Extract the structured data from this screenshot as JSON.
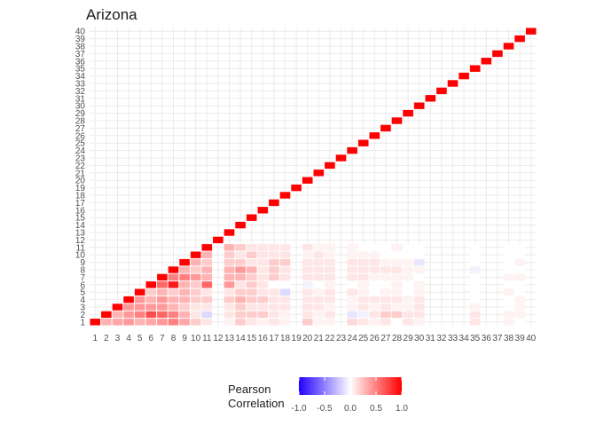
{
  "chart_data": {
    "type": "heatmap",
    "title": "Arizona",
    "xlabel": "",
    "ylabel": "",
    "x": [
      1,
      2,
      3,
      4,
      5,
      6,
      7,
      8,
      9,
      10,
      11,
      12,
      13,
      14,
      15,
      16,
      17,
      18,
      19,
      20,
      21,
      22,
      23,
      24,
      25,
      26,
      27,
      28,
      29,
      30,
      31,
      32,
      33,
      34,
      35,
      36,
      37,
      38,
      39,
      40
    ],
    "y": [
      1,
      2,
      3,
      4,
      5,
      6,
      7,
      8,
      9,
      10,
      11,
      12,
      13,
      14,
      15,
      16,
      17,
      18,
      19,
      20,
      21,
      22,
      23,
      24,
      25,
      26,
      27,
      28,
      29,
      30,
      31,
      32,
      33,
      34,
      35,
      36,
      37,
      38,
      39,
      40
    ],
    "x_tick_labels": [
      "1",
      "2",
      "3",
      "4",
      "5",
      "6",
      "7",
      "8",
      "9",
      "10",
      "11",
      "12",
      "13",
      "14",
      "15",
      "16",
      "17",
      "18",
      "19",
      "20",
      "21",
      "22",
      "23",
      "24",
      "25",
      "26",
      "27",
      "28",
      "29",
      "30",
      "31",
      "32",
      "33",
      "34",
      "35",
      "36",
      "37",
      "38",
      "39",
      "40"
    ],
    "y_tick_labels": [
      "1",
      "2",
      "3",
      "4",
      "5",
      "6",
      "7",
      "8",
      "9",
      "10",
      "11",
      "12",
      "13",
      "14",
      "15",
      "16",
      "17",
      "18",
      "19",
      "20",
      "21",
      "22",
      "23",
      "24",
      "25",
      "26",
      "27",
      "28",
      "29",
      "30",
      "31",
      "32",
      "33",
      "34",
      "35",
      "36",
      "37",
      "38",
      "39",
      "40"
    ],
    "triangle": "upper",
    "diagonal_value": 1.0,
    "value_range": [
      -1,
      1
    ],
    "grid": true,
    "missing_indices": [
      12,
      19,
      23,
      31,
      32,
      33,
      34,
      36,
      37,
      40
    ],
    "correlations": [
      [
        0.15,
        0.3,
        0.35,
        0.4,
        0.3,
        0.35,
        0.4,
        0.5,
        0.35,
        0.2,
        0.1,
        0.05,
        0.2,
        0.1,
        0.05,
        0.1,
        0.05,
        0.2,
        0.05,
        0.05,
        0.15,
        0.1,
        0.05,
        0.1,
        0.0,
        0.1,
        0.05,
        0.1,
        0.05,
        0.0,
        0.0,
        0.05,
        0.0,
        0.0,
        0.0,
        0.0,
        0.0,
        0.0
      ],
      [
        0.3,
        0.4,
        0.3,
        0.4,
        0.5,
        0.7,
        0.6,
        0.5,
        0.3,
        0.1,
        -0.15,
        0.1,
        0.2,
        0.2,
        0.2,
        0.1,
        0.05,
        0.1,
        0.05,
        0.1,
        -0.1,
        -0.05,
        0.1,
        0.2,
        0.2,
        0.1,
        0.1,
        0.1,
        0.05,
        0.05,
        0.0,
        0.0,
        0.05,
        0.0,
        0.0,
        0.0,
        0.0,
        0.0
      ],
      [
        0.25,
        0.3,
        0.2,
        0.4,
        0.4,
        0.4,
        0.4,
        0.3,
        0.2,
        0.1,
        0.1,
        0.1,
        0.2,
        0.1,
        0.1,
        0.1,
        0.1,
        0.1,
        0.1,
        0.05,
        0.05,
        0.1,
        0.05,
        0.1,
        0.05,
        0.05,
        0.1,
        0.05,
        0.0,
        0.05,
        0.0,
        0.0,
        0.0,
        -0.05,
        0.0,
        0.0,
        0.0,
        0.0
      ],
      [
        0.3,
        0.3,
        0.4,
        0.3,
        0.4,
        0.3,
        0.4,
        0.3,
        0.3,
        0.2,
        0.2,
        0.2,
        0.3,
        0.2,
        0.2,
        0.1,
        0.1,
        0.1,
        0.1,
        0.1,
        0.05,
        0.1,
        0.1,
        0.1,
        0.1,
        0.05,
        0.1,
        0.0,
        0.0,
        0.05,
        0.0,
        0.0,
        -0.1,
        0.0,
        0.0,
        0.0,
        0.0,
        0.0
      ],
      [
        0.3,
        0.2,
        0.3,
        0.3,
        0.3,
        0.2,
        0.3,
        0.2,
        0.3,
        0.2,
        0.1,
        0.1,
        0.2,
        0.2,
        0.1,
        0.1,
        -0.15,
        0.1,
        0.05,
        0.1,
        0.1,
        0.05,
        0.0,
        0.05,
        0.05,
        0.0,
        0.05,
        0.0,
        0.05,
        0.0,
        -0.05,
        0.0,
        0.0,
        0.0,
        0.0,
        0.0,
        0.0,
        0.0
      ],
      [
        0.2,
        0.2,
        0.2,
        0.2,
        0.2,
        0.9,
        0.6,
        0.9,
        0.3,
        0.2,
        0.6,
        0.4,
        0.1,
        0.2,
        0.1,
        0.0,
        0.0,
        -0.05,
        0.0,
        0.05,
        0.0,
        0.05,
        0.0,
        0.0,
        0.05,
        0.0,
        0.05,
        0.0,
        0.0,
        0.0,
        0.0,
        0.0,
        0.05,
        0.0,
        0.0,
        0.05,
        0.0,
        0.0
      ],
      [
        0.3,
        0.2,
        0.3,
        0.4,
        0.5,
        0.4,
        0.5,
        0.5,
        0.5,
        0.4,
        0.3,
        0.3,
        0.3,
        0.2,
        0.1,
        0.2,
        0.1,
        0.1,
        0.1,
        0.1,
        0.1,
        0.1,
        0.05,
        0.05,
        0.05,
        0.05,
        0.0,
        0.0,
        0.05,
        0.05,
        0.0,
        0.0,
        0.0,
        -0.05,
        0.0,
        0.0,
        0.0,
        0.0
      ],
      [
        0.35,
        0.3,
        0.3,
        0.3,
        0.4,
        0.4,
        0.4,
        0.5,
        0.3,
        0.2,
        0.3,
        0.3,
        0.4,
        0.3,
        0.1,
        0.2,
        0.1,
        0.1,
        0.1,
        0.1,
        0.1,
        0.1,
        0.1,
        0.1,
        0.1,
        0.05,
        0.05,
        -0.05,
        0.0,
        0.0,
        0.0,
        0.0,
        0.0,
        -0.1,
        0.0,
        0.0,
        0.0,
        0.0
      ],
      [
        0.2,
        0.2,
        0.2,
        0.1,
        0.3,
        0.1,
        0.2,
        0.2,
        0.2,
        0.3,
        0.2,
        0.2,
        0.2,
        0.1,
        0.1,
        0.2,
        0.2,
        0.1,
        0.1,
        0.1,
        0.1,
        0.1,
        0.1,
        0.05,
        0.05,
        0.05,
        -0.1,
        0.0,
        0.0,
        0.05,
        0.0,
        0.0,
        0.0,
        0.0,
        0.0,
        0.0,
        0.0,
        0.0
      ],
      [
        0.15,
        0.3,
        0.2,
        0.3,
        0.2,
        0.3,
        0.2,
        0.4,
        0.3,
        0.2,
        0.3,
        0.2,
        0.1,
        0.2,
        0.1,
        0.1,
        0.1,
        0.05,
        0.1,
        0.05,
        0.05,
        0.05,
        0.05,
        0.0,
        0.0,
        0.0,
        0.0,
        0.0,
        0.0,
        0.0,
        0.0,
        0.05,
        0.0,
        0.0,
        -0.05,
        0.0,
        0.0,
        0.0
      ],
      [
        0.1,
        0.1,
        0.2,
        0.2,
        0.2,
        0.2,
        0.3,
        0.2,
        0.3,
        0.2,
        0.2,
        0.3,
        0.2,
        0.1,
        0.1,
        0.1,
        0.1,
        0.1,
        0.05,
        0.05,
        0.05,
        0.0,
        0.0,
        0.0,
        0.05,
        0.0,
        0.0,
        0.0,
        0.0,
        0.0,
        0.0,
        0.0,
        0.0,
        0.05,
        0.0,
        0.0,
        0.0,
        0.0
      ]
    ]
  },
  "legend": {
    "title_line1": "Pearson",
    "title_line2": "Correlation",
    "labels": [
      "-1.0",
      "-0.5",
      "0.0",
      "0.5",
      "1.0"
    ],
    "low_color": "#2200ff",
    "mid_color": "#ffffff",
    "high_color": "#ff0000"
  },
  "colors": {
    "panel_bg": "#ffffff",
    "grid": "#ebebeb",
    "diagonal": "#ff0000"
  }
}
